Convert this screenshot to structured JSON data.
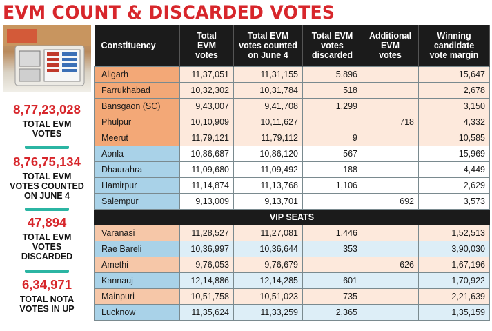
{
  "title": "EVM COUNT & DISCARDED VOTES",
  "accent_color": "#d7262b",
  "divider_color": "#2bb5a3",
  "sidebar": {
    "stats": [
      {
        "value": "8,77,23,028",
        "label_lines": [
          "TOTAL EVM",
          "VOTES"
        ]
      },
      {
        "value": "8,76,75,134",
        "label_lines": [
          "TOTAL EVM",
          "VOTES COUNTED",
          "ON JUNE 4"
        ]
      },
      {
        "value": "47,894",
        "label_lines": [
          "TOTAL EVM",
          "VOTES",
          "DISCARDED"
        ]
      },
      {
        "value": "6,34,971",
        "label_lines": [
          "TOTAL NOTA",
          "VOTES IN UP"
        ]
      }
    ]
  },
  "table": {
    "headers": [
      [
        "Constituency"
      ],
      [
        "Total",
        "EVM",
        "votes"
      ],
      [
        "Total EVM",
        "votes counted",
        "on June 4"
      ],
      [
        "Total EVM",
        "votes",
        "discarded"
      ],
      [
        "Additional",
        "EVM",
        "votes"
      ],
      [
        "Winning",
        "candidate",
        "vote margin"
      ]
    ],
    "rows": [
      [
        "Aligarh",
        "11,37,051",
        "11,31,155",
        "5,896",
        "",
        "15,647"
      ],
      [
        "Farrukhabad",
        "10,32,302",
        "10,31,784",
        "518",
        "",
        "2,678"
      ],
      [
        "Bansgaon (SC)",
        "9,43,007",
        "9,41,708",
        "1,299",
        "",
        "3,150"
      ],
      [
        "Phulpur",
        "10,10,909",
        "10,11,627",
        "",
        "718",
        "4,332"
      ],
      [
        "Meerut",
        "11,79,121",
        "11,79,112",
        "9",
        "",
        "10,585"
      ],
      [
        "Aonla",
        "10,86,687",
        "10,86,120",
        "567",
        "",
        "15,969"
      ],
      [
        "Dhaurahra",
        "11,09,680",
        "11,09,492",
        "188",
        "",
        "4,449"
      ],
      [
        "Hamirpur",
        "11,14,874",
        "11,13,768",
        "1,106",
        "",
        "2,629"
      ],
      [
        "Salempur",
        "9,13,009",
        "9,13,701",
        "",
        "692",
        "3,573"
      ]
    ],
    "vip_label": "VIP SEATS",
    "vip_rows": [
      [
        "Varanasi",
        "11,28,527",
        "11,27,081",
        "1,446",
        "",
        "1,52,513"
      ],
      [
        "Rae Bareli",
        "10,36,997",
        "10,36,644",
        "353",
        "",
        "3,90,030"
      ],
      [
        "Amethi",
        "9,76,053",
        "9,76,679",
        "",
        "626",
        "1,67,196"
      ],
      [
        "Kannauj",
        "12,14,886",
        "12,14,285",
        "601",
        "",
        "1,70,922"
      ],
      [
        "Mainpuri",
        "10,51,758",
        "10,51,023",
        "735",
        "",
        "2,21,639"
      ],
      [
        "Lucknow",
        "11,35,624",
        "11,33,259",
        "2,365",
        "",
        "1,35,159"
      ]
    ]
  }
}
